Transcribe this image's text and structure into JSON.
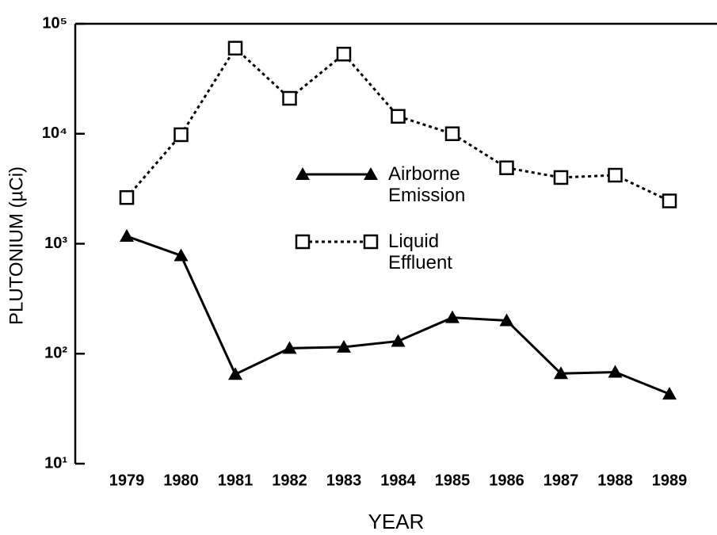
{
  "chart_data": {
    "type": "line",
    "xlabel": "YEAR",
    "ylabel": "PLUTONIUM (µCi)",
    "categories": [
      "1979",
      "1980",
      "1981",
      "1982",
      "1983",
      "1984",
      "1985",
      "1986",
      "1987",
      "1988",
      "1989"
    ],
    "series": [
      {
        "name": "Airborne Emission",
        "color": "#000000",
        "marker": "triangle",
        "linestyle": "solid",
        "values": [
          1170,
          780,
          65,
          112,
          115,
          130,
          213,
          200,
          66,
          68,
          43
        ]
      },
      {
        "name": "Liquid Effluent",
        "color": "#000000",
        "marker": "square",
        "linestyle": "dotted",
        "values": [
          2630,
          9800,
          60000,
          21000,
          53000,
          14400,
          10000,
          4900,
          4000,
          4200,
          2450
        ]
      }
    ],
    "ylog": true,
    "ylim": [
      10,
      100000
    ],
    "yticks": [
      {
        "value": 10,
        "label": "10¹"
      },
      {
        "value": 100,
        "label": "10²"
      },
      {
        "value": 1000,
        "label": "10³"
      },
      {
        "value": 10000,
        "label": "10⁴"
      },
      {
        "value": 100000,
        "label": "10⁵"
      }
    ]
  }
}
